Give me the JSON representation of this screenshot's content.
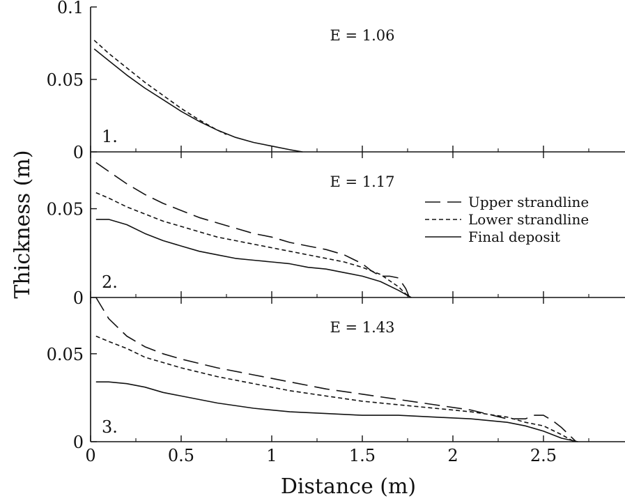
{
  "chart_data": {
    "type": "line",
    "xlabel": "Distance (m)",
    "ylabel": "Thickness (m)",
    "xlim": [
      0,
      2.95
    ],
    "x_ticks": [
      0,
      0.5,
      1,
      1.5,
      2,
      2.5
    ],
    "x_tick_labels": [
      "0",
      "0.5",
      "1",
      "1.5",
      "2",
      "2.5"
    ],
    "legend": {
      "placement": "right of panel 2",
      "entries": [
        {
          "name": "Upper strandline",
          "style": "long-dash"
        },
        {
          "name": "Lower strandline",
          "style": "short-dash"
        },
        {
          "name": "Final deposit",
          "style": "solid"
        }
      ]
    },
    "panels": [
      {
        "label": "1.",
        "annotation": "E = 1.06",
        "ylim": [
          0,
          0.1
        ],
        "y_ticks": [
          0,
          0.05,
          0.1
        ],
        "y_tick_labels": [
          "0",
          "0.05",
          "0.1"
        ],
        "series": [
          {
            "name": "Lower strandline",
            "style": "short-dash",
            "x": [
              0.02,
              0.1,
              0.2,
              0.3,
              0.4,
              0.5,
              0.6,
              0.7,
              0.75
            ],
            "y": [
              0.077,
              0.068,
              0.058,
              0.048,
              0.039,
              0.03,
              0.022,
              0.015,
              0.012
            ]
          },
          {
            "name": "Final deposit",
            "style": "solid",
            "x": [
              0.02,
              0.1,
              0.2,
              0.3,
              0.4,
              0.5,
              0.6,
              0.7,
              0.8,
              0.9,
              1.0,
              1.1,
              1.17
            ],
            "y": [
              0.071,
              0.063,
              0.053,
              0.044,
              0.036,
              0.028,
              0.021,
              0.015,
              0.01,
              0.0065,
              0.004,
              0.0015,
              0.0
            ]
          }
        ]
      },
      {
        "label": "2.",
        "annotation": "E = 1.17",
        "ylim": [
          0,
          0.082
        ],
        "y_ticks": [
          0,
          0.05
        ],
        "y_tick_labels": [
          "0",
          "0.05"
        ],
        "series": [
          {
            "name": "Upper strandline",
            "style": "long-dash",
            "x": [
              0.03,
              0.1,
              0.2,
              0.3,
              0.4,
              0.5,
              0.6,
              0.7,
              0.8,
              0.9,
              1.0,
              1.1,
              1.2,
              1.3,
              1.4,
              1.5,
              1.55,
              1.6,
              1.65,
              1.7,
              1.74,
              1.76
            ],
            "y": [
              0.076,
              0.071,
              0.064,
              0.058,
              0.053,
              0.049,
              0.045,
              0.042,
              0.039,
              0.036,
              0.034,
              0.031,
              0.029,
              0.027,
              0.024,
              0.019,
              0.015,
              0.012,
              0.012,
              0.011,
              0.005,
              0.0
            ]
          },
          {
            "name": "Lower strandline",
            "style": "short-dash",
            "x": [
              0.03,
              0.1,
              0.2,
              0.3,
              0.4,
              0.5,
              0.6,
              0.7,
              0.8,
              0.9,
              1.0,
              1.1,
              1.2,
              1.3,
              1.4,
              1.5,
              1.6,
              1.7,
              1.75
            ],
            "y": [
              0.059,
              0.056,
              0.051,
              0.047,
              0.043,
              0.04,
              0.037,
              0.034,
              0.032,
              0.03,
              0.028,
              0.026,
              0.024,
              0.022,
              0.02,
              0.017,
              0.013,
              0.006,
              0.001
            ]
          },
          {
            "name": "Final deposit",
            "style": "solid",
            "x": [
              0.03,
              0.1,
              0.2,
              0.3,
              0.4,
              0.5,
              0.6,
              0.7,
              0.8,
              0.9,
              1.0,
              1.1,
              1.2,
              1.3,
              1.4,
              1.5,
              1.6,
              1.7,
              1.77
            ],
            "y": [
              0.044,
              0.044,
              0.041,
              0.036,
              0.032,
              0.029,
              0.026,
              0.024,
              0.022,
              0.021,
              0.02,
              0.019,
              0.017,
              0.016,
              0.014,
              0.012,
              0.009,
              0.004,
              0.0
            ]
          }
        ]
      },
      {
        "label": "3.",
        "annotation": "E = 1.43",
        "ylim": [
          0,
          0.082
        ],
        "y_ticks": [
          0,
          0.05
        ],
        "y_tick_labels": [
          "0",
          "0.05"
        ],
        "series": [
          {
            "name": "Upper strandline",
            "style": "long-dash",
            "x": [
              0.03,
              0.1,
              0.2,
              0.3,
              0.4,
              0.5,
              0.7,
              0.9,
              1.1,
              1.3,
              1.5,
              1.7,
              1.9,
              2.1,
              2.3,
              2.4,
              2.45,
              2.5,
              2.55,
              2.6,
              2.65,
              2.68
            ],
            "y": [
              0.082,
              0.07,
              0.06,
              0.054,
              0.05,
              0.047,
              0.042,
              0.038,
              0.034,
              0.03,
              0.027,
              0.024,
              0.021,
              0.018,
              0.013,
              0.013,
              0.015,
              0.015,
              0.012,
              0.008,
              0.003,
              0.0
            ]
          },
          {
            "name": "Lower strandline",
            "style": "short-dash",
            "x": [
              0.03,
              0.1,
              0.2,
              0.3,
              0.4,
              0.5,
              0.7,
              0.9,
              1.1,
              1.3,
              1.5,
              1.7,
              1.9,
              2.1,
              2.3,
              2.4,
              2.5,
              2.6,
              2.67
            ],
            "y": [
              0.06,
              0.057,
              0.053,
              0.048,
              0.045,
              0.042,
              0.037,
              0.033,
              0.029,
              0.026,
              0.023,
              0.021,
              0.019,
              0.017,
              0.014,
              0.011,
              0.009,
              0.004,
              0.0
            ]
          },
          {
            "name": "Final deposit",
            "style": "solid",
            "x": [
              0.03,
              0.1,
              0.2,
              0.3,
              0.4,
              0.5,
              0.7,
              0.9,
              1.1,
              1.3,
              1.5,
              1.7,
              1.9,
              2.1,
              2.2,
              2.3,
              2.4,
              2.5,
              2.6,
              2.69
            ],
            "y": [
              0.034,
              0.034,
              0.033,
              0.031,
              0.028,
              0.026,
              0.022,
              0.019,
              0.017,
              0.016,
              0.015,
              0.015,
              0.014,
              0.013,
              0.012,
              0.011,
              0.009,
              0.006,
              0.002,
              0.0
            ]
          }
        ]
      }
    ]
  }
}
